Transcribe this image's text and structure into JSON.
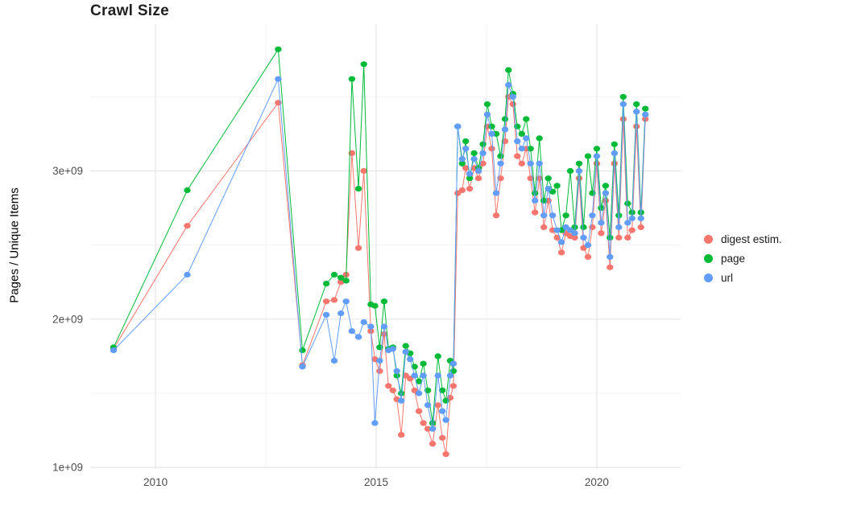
{
  "chart_data": {
    "type": "line",
    "title": "Crawl Size",
    "ylabel": "Pages / Unique Items",
    "xlabel": "",
    "grid": true,
    "legend_position": "right",
    "background_color": "#ffffff",
    "grid_major_color": "#e5e5e5",
    "grid_minor_color": "#f3f3f3",
    "tick_label_color": "#4d4d4d",
    "xlim": [
      2008.52,
      2021.9
    ],
    "ylim": [
      990000000.0,
      3990000000.0
    ],
    "x_ticks": [
      {
        "value": 2010,
        "label": "2010"
      },
      {
        "value": 2015,
        "label": "2015"
      },
      {
        "value": 2020,
        "label": "2020"
      }
    ],
    "y_ticks": [
      {
        "value": 1000000000.0,
        "label": "1e+09"
      },
      {
        "value": 2000000000.0,
        "label": "2e+09"
      },
      {
        "value": 3000000000.0,
        "label": "3e+09"
      }
    ],
    "x_minor": [
      2012.5,
      2017.5
    ],
    "y_minor": [
      1500000000.0,
      2500000000.0,
      3500000000.0
    ],
    "x": [
      2009.05,
      2010.72,
      2012.78,
      2013.33,
      2013.87,
      2014.05,
      2014.2,
      2014.32,
      2014.45,
      2014.6,
      2014.72,
      2014.88,
      2014.97,
      2015.08,
      2015.18,
      2015.28,
      2015.38,
      2015.47,
      2015.57,
      2015.67,
      2015.77,
      2015.87,
      2015.97,
      2016.07,
      2016.17,
      2016.28,
      2016.4,
      2016.5,
      2016.58,
      2016.68,
      2016.75,
      2016.85,
      2016.95,
      2017.03,
      2017.12,
      2017.22,
      2017.32,
      2017.42,
      2017.52,
      2017.62,
      2017.72,
      2017.82,
      2017.92,
      2018.0,
      2018.1,
      2018.2,
      2018.3,
      2018.4,
      2018.5,
      2018.6,
      2018.7,
      2018.8,
      2018.9,
      2019.0,
      2019.1,
      2019.2,
      2019.3,
      2019.4,
      2019.5,
      2019.6,
      2019.7,
      2019.8,
      2019.9,
      2020.0,
      2020.1,
      2020.2,
      2020.3,
      2020.4,
      2020.5,
      2020.6,
      2020.7,
      2020.8,
      2020.9,
      2021.0,
      2021.1
    ],
    "series": [
      {
        "name": "digest estim.",
        "color": "#F8766D",
        "values": [
          1800000000.0,
          2630000000.0,
          3460000000.0,
          1690000000.0,
          2120000000.0,
          2130000000.0,
          2250000000.0,
          2300000000.0,
          3120000000.0,
          2480000000.0,
          3000000000.0,
          1920000000.0,
          1730000000.0,
          1650000000.0,
          1900000000.0,
          1550000000.0,
          1520000000.0,
          1460000000.0,
          1220000000.0,
          1620000000.0,
          1600000000.0,
          1520000000.0,
          1380000000.0,
          1300000000.0,
          1260000000.0,
          1160000000.0,
          1420000000.0,
          1200000000.0,
          1090000000.0,
          1470000000.0,
          1550000000.0,
          2850000000.0,
          2870000000.0,
          3020000000.0,
          2880000000.0,
          3020000000.0,
          2950000000.0,
          3050000000.0,
          3300000000.0,
          3150000000.0,
          2700000000.0,
          2950000000.0,
          3200000000.0,
          3500000000.0,
          3450000000.0,
          3100000000.0,
          3050000000.0,
          3150000000.0,
          2950000000.0,
          2720000000.0,
          2950000000.0,
          2620000000.0,
          2800000000.0,
          2600000000.0,
          2550000000.0,
          2450000000.0,
          2580000000.0,
          2560000000.0,
          2550000000.0,
          2950000000.0,
          2480000000.0,
          2420000000.0,
          2620000000.0,
          3050000000.0,
          2580000000.0,
          2800000000.0,
          2350000000.0,
          3050000000.0,
          2550000000.0,
          3350000000.0,
          2550000000.0,
          2600000000.0,
          3300000000.0,
          2620000000.0,
          3350000000.0
        ]
      },
      {
        "name": "page",
        "color": "#00BA38",
        "values": [
          1810000000.0,
          2870000000.0,
          3820000000.0,
          1790000000.0,
          2240000000.0,
          2300000000.0,
          2280000000.0,
          2260000000.0,
          3620000000.0,
          2880000000.0,
          3720000000.0,
          2100000000.0,
          2090000000.0,
          1810000000.0,
          2120000000.0,
          1800000000.0,
          1810000000.0,
          1620000000.0,
          1500000000.0,
          1820000000.0,
          1770000000.0,
          1680000000.0,
          1580000000.0,
          1700000000.0,
          1520000000.0,
          1300000000.0,
          1750000000.0,
          1520000000.0,
          1450000000.0,
          1720000000.0,
          1650000000.0,
          3300000000.0,
          3050000000.0,
          3200000000.0,
          2950000000.0,
          3120000000.0,
          3020000000.0,
          3180000000.0,
          3450000000.0,
          3300000000.0,
          3250000000.0,
          3100000000.0,
          3350000000.0,
          3680000000.0,
          3520000000.0,
          3300000000.0,
          3250000000.0,
          3350000000.0,
          3150000000.0,
          2850000000.0,
          3220000000.0,
          2800000000.0,
          2950000000.0,
          2860000000.0,
          2900000000.0,
          2600000000.0,
          2700000000.0,
          3000000000.0,
          2620000000.0,
          3050000000.0,
          2620000000.0,
          3100000000.0,
          2850000000.0,
          3150000000.0,
          2750000000.0,
          2900000000.0,
          2550000000.0,
          3180000000.0,
          2700000000.0,
          3500000000.0,
          2780000000.0,
          2720000000.0,
          3450000000.0,
          2720000000.0,
          3420000000.0
        ]
      },
      {
        "name": "url",
        "color": "#619CFF",
        "values": [
          1790000000.0,
          2300000000.0,
          3620000000.0,
          1680000000.0,
          2030000000.0,
          1720000000.0,
          2040000000.0,
          2120000000.0,
          1920000000.0,
          1880000000.0,
          1980000000.0,
          1950000000.0,
          1300000000.0,
          1720000000.0,
          1950000000.0,
          1790000000.0,
          1800000000.0,
          1650000000.0,
          1450000000.0,
          1780000000.0,
          1730000000.0,
          1620000000.0,
          1500000000.0,
          1620000000.0,
          1420000000.0,
          1260000000.0,
          1620000000.0,
          1380000000.0,
          1320000000.0,
          1620000000.0,
          1700000000.0,
          3300000000.0,
          3080000000.0,
          3150000000.0,
          2980000000.0,
          3080000000.0,
          3000000000.0,
          3120000000.0,
          3380000000.0,
          3250000000.0,
          2850000000.0,
          3050000000.0,
          3280000000.0,
          3580000000.0,
          3500000000.0,
          3200000000.0,
          3150000000.0,
          3220000000.0,
          3050000000.0,
          2800000000.0,
          3050000000.0,
          2700000000.0,
          2880000000.0,
          2700000000.0,
          2600000000.0,
          2520000000.0,
          2620000000.0,
          2600000000.0,
          2580000000.0,
          3000000000.0,
          2550000000.0,
          2500000000.0,
          2700000000.0,
          3100000000.0,
          2650000000.0,
          2850000000.0,
          2420000000.0,
          3120000000.0,
          2620000000.0,
          3450000000.0,
          2650000000.0,
          2680000000.0,
          3400000000.0,
          2680000000.0,
          3380000000.0
        ]
      }
    ]
  }
}
